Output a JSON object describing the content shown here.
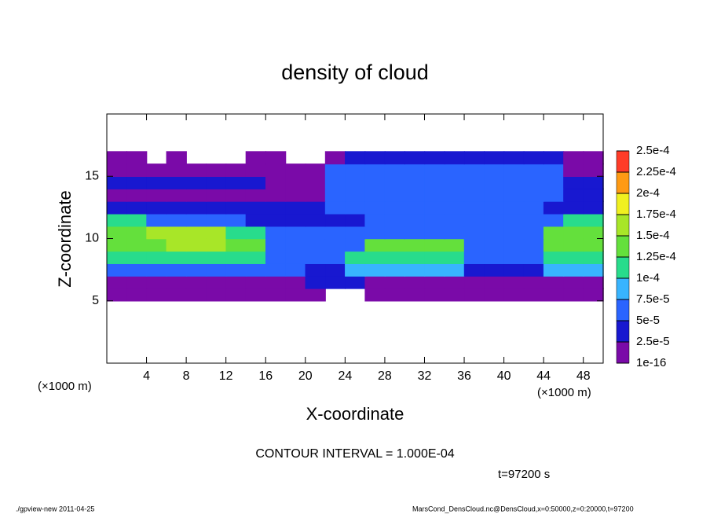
{
  "chart_data": {
    "type": "heatmap",
    "title": "density of cloud",
    "x_label": "X-coordinate",
    "y_label": "Z-coordinate",
    "x_unit_left": "(×1000 m)",
    "x_unit_right": "(×1000 m)",
    "contour_note": "CONTOUR INTERVAL = 1.000E-04",
    "time_note": "t=97200 s",
    "footer_left": "./gpview-new  2011-04-25",
    "footer_right": "MarsCond_DensCloud.nc@DensCloud,x=0:50000,z=0:20000,t=97200",
    "xlim": [
      0,
      50
    ],
    "ylim": [
      0,
      20
    ],
    "xticks": [
      4,
      8,
      12,
      16,
      20,
      24,
      28,
      32,
      36,
      40,
      44,
      48
    ],
    "yticks": [
      5,
      10,
      15
    ],
    "x": [
      1,
      3,
      5,
      7,
      9,
      11,
      13,
      15,
      17,
      19,
      21,
      23,
      25,
      27,
      29,
      31,
      33,
      35,
      37,
      39,
      41,
      43,
      45,
      47,
      49
    ],
    "z": [
      5.5,
      6.5,
      7.5,
      8.5,
      9.5,
      10.5,
      11.5,
      12.5,
      13.5,
      14.5,
      15.5,
      16.5
    ],
    "values": [
      [
        1e-05,
        1e-05,
        1e-05,
        1e-05,
        1e-05,
        1e-05,
        1e-05,
        1e-05,
        1e-05,
        1e-05,
        1e-05,
        null,
        null,
        1e-05,
        1e-05,
        1e-05,
        1e-05,
        1e-05,
        1e-05,
        1e-05,
        1e-05,
        1e-05,
        1e-05,
        1e-05,
        1e-05
      ],
      [
        2e-05,
        2e-05,
        2e-05,
        2e-05,
        2e-05,
        2e-05,
        2e-05,
        2e-05,
        2e-05,
        2e-05,
        4e-05,
        4e-05,
        4e-05,
        2e-05,
        2e-05,
        2e-05,
        2e-05,
        2e-05,
        2e-05,
        2e-05,
        2e-05,
        2e-05,
        2e-05,
        2e-05,
        2e-05
      ],
      [
        7e-05,
        7e-05,
        7e-05,
        7e-05,
        7e-05,
        5e-05,
        5e-05,
        5e-05,
        5e-05,
        5e-05,
        4e-05,
        4e-05,
        9e-05,
        9e-05,
        9e-05,
        9e-05,
        9e-05,
        9e-05,
        4e-05,
        4e-05,
        4e-05,
        4e-05,
        8e-05,
        8e-05,
        8e-05
      ],
      [
        0.00011,
        0.00011,
        0.00011,
        0.00011,
        0.00011,
        0.00011,
        0.00011,
        0.00011,
        6e-05,
        6e-05,
        6e-05,
        6e-05,
        0.00012,
        0.00012,
        0.00012,
        0.00012,
        0.00012,
        0.00012,
        5e-05,
        5e-05,
        5e-05,
        5e-05,
        0.00012,
        0.00012,
        0.00012
      ],
      [
        0.00014,
        0.00014,
        0.00014,
        0.00016,
        0.00016,
        0.00016,
        0.00013,
        0.00013,
        6e-05,
        6e-05,
        6e-05,
        6e-05,
        6e-05,
        0.00013,
        0.00013,
        0.00013,
        0.00013,
        0.00013,
        5e-05,
        5e-05,
        5e-05,
        5e-05,
        0.00014,
        0.00014,
        0.00014
      ],
      [
        0.00014,
        0.00014,
        0.00015,
        0.00015,
        0.00015,
        0.00015,
        0.00011,
        0.00011,
        5e-05,
        5e-05,
        5e-05,
        5e-05,
        5e-05,
        5e-05,
        5e-05,
        5e-05,
        5e-05,
        5e-05,
        5e-05,
        5e-05,
        5e-05,
        5e-05,
        0.00013,
        0.00013,
        0.00013
      ],
      [
        0.00011,
        0.00011,
        5e-05,
        5e-05,
        5e-05,
        5e-05,
        5e-05,
        4e-05,
        4e-05,
        4e-05,
        4e-05,
        4e-05,
        4e-05,
        6e-05,
        6e-05,
        6e-05,
        6e-05,
        6e-05,
        6e-05,
        6e-05,
        5e-05,
        5e-05,
        5e-05,
        0.00011,
        0.00011
      ],
      [
        3e-05,
        3e-05,
        3e-05,
        3e-05,
        3e-05,
        3e-05,
        3e-05,
        3e-05,
        3e-05,
        3e-05,
        3e-05,
        6e-05,
        6e-05,
        6e-05,
        6e-05,
        6e-05,
        6e-05,
        6e-05,
        6e-05,
        6e-05,
        6e-05,
        6e-05,
        3e-05,
        3e-05,
        3e-05
      ],
      [
        2e-05,
        2e-05,
        2e-05,
        2e-05,
        2e-05,
        2e-05,
        2e-05,
        2e-05,
        2e-05,
        2e-05,
        2e-05,
        7e-05,
        7e-05,
        7e-05,
        7e-05,
        7e-05,
        7e-05,
        7e-05,
        7e-05,
        7e-05,
        7e-05,
        7e-05,
        7e-05,
        3e-05,
        3e-05
      ],
      [
        4e-05,
        4e-05,
        4e-05,
        4e-05,
        4e-05,
        4e-05,
        4e-05,
        4e-05,
        1e-05,
        1e-05,
        1e-05,
        6e-05,
        6e-05,
        6e-05,
        6e-05,
        6e-05,
        6e-05,
        6e-05,
        6e-05,
        6e-05,
        6e-05,
        6e-05,
        6e-05,
        3e-05,
        3e-05
      ],
      [
        1e-05,
        1e-05,
        1e-05,
        1e-05,
        1e-05,
        1e-05,
        1e-05,
        1e-05,
        1e-05,
        1e-05,
        1e-05,
        5e-05,
        5e-05,
        5e-05,
        5e-05,
        5e-05,
        5e-05,
        5e-05,
        5e-05,
        5e-05,
        5e-05,
        5e-05,
        5e-05,
        2e-05,
        2e-05
      ],
      [
        1e-05,
        1e-05,
        null,
        1e-05,
        null,
        null,
        null,
        1e-05,
        1e-05,
        null,
        null,
        1e-05,
        3e-05,
        3e-05,
        3e-05,
        3e-05,
        3e-05,
        3e-05,
        3e-05,
        3e-05,
        3e-05,
        3e-05,
        3e-05,
        1e-05,
        1e-05
      ]
    ],
    "levels": [
      {
        "value": 1e-16,
        "label": "1e-16"
      },
      {
        "value": 2.5e-05,
        "label": "2.5e-5"
      },
      {
        "value": 5e-05,
        "label": "5e-5"
      },
      {
        "value": 7.5e-05,
        "label": "7.5e-5"
      },
      {
        "value": 0.0001,
        "label": "1e-4"
      },
      {
        "value": 0.000125,
        "label": "1.25e-4"
      },
      {
        "value": 0.00015,
        "label": "1.5e-4"
      },
      {
        "value": 0.000175,
        "label": "1.75e-4"
      },
      {
        "value": 0.0002,
        "label": "2e-4"
      },
      {
        "value": 0.000225,
        "label": "2.25e-4"
      },
      {
        "value": 0.00025,
        "label": "2.5e-4"
      }
    ],
    "colors": [
      "#7a0aa8",
      "#1818d0",
      "#2a64ff",
      "#38b4ff",
      "#28dc8c",
      "#64e03c",
      "#a8e628",
      "#f0f020",
      "#ff9a14",
      "#ff3c28"
    ]
  }
}
